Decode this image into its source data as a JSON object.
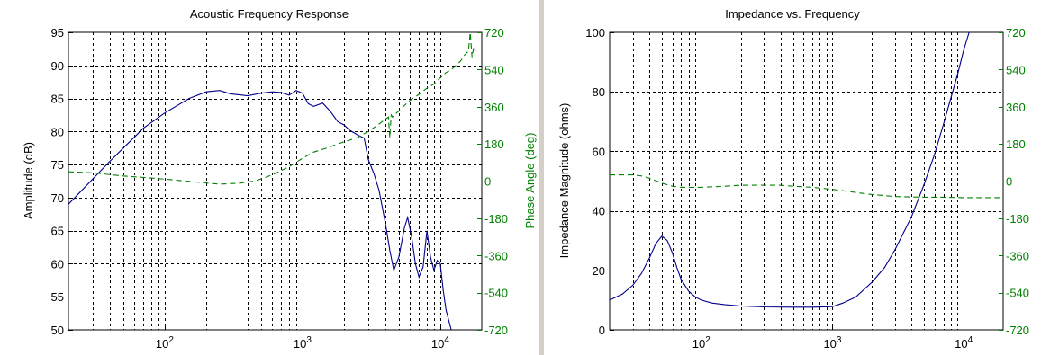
{
  "chart_data": [
    {
      "type": "line",
      "title": "Acoustic Frequency Response",
      "xscale": "log",
      "xlim": [
        20,
        20000
      ],
      "x_tick_labels": [
        {
          "value": 100,
          "base": "10",
          "exp": "2"
        },
        {
          "value": 1000,
          "base": "10",
          "exp": "3"
        },
        {
          "value": 10000,
          "base": "10",
          "exp": "4"
        }
      ],
      "ylabel": "Amplitude (dB)",
      "ylim": [
        50,
        95
      ],
      "y_ticks": [
        "50",
        "55",
        "60",
        "65",
        "70",
        "75",
        "80",
        "85",
        "90",
        "95"
      ],
      "y2label": "Phase Angle (deg)",
      "y2lim": [
        -720,
        720
      ],
      "y2_ticks": [
        "-720",
        "-540",
        "-360",
        "-180",
        "0",
        "180",
        "360",
        "540",
        "720"
      ],
      "grid": true,
      "series": [
        {
          "axis": "left",
          "color": "#00008b",
          "dash": "solid",
          "x": [
            20,
            40,
            70,
            100,
            150,
            200,
            250,
            300,
            400,
            500,
            600,
            700,
            800,
            900,
            1000,
            1100,
            1200,
            1400,
            1600,
            1800,
            2000,
            2200,
            2500,
            2800,
            3000,
            3300,
            3600,
            4000,
            4300,
            4600,
            5000,
            5500,
            5800,
            6200,
            6600,
            7000,
            7500,
            8000,
            8500,
            9000,
            9500,
            10000,
            10500,
            11000,
            11500,
            12000
          ],
          "y": [
            69,
            75.5,
            80.5,
            82.8,
            85.0,
            86.0,
            86.2,
            85.7,
            85.4,
            85.8,
            86.0,
            85.9,
            85.5,
            86.2,
            85.8,
            84.2,
            83.8,
            84.3,
            83.0,
            81.5,
            81.0,
            80.2,
            79.5,
            79.0,
            75.8,
            73.6,
            71.0,
            66.0,
            62.0,
            59.0,
            61.0,
            65.5,
            67.0,
            64.0,
            60.0,
            58.0,
            59.5,
            65.0,
            61.0,
            59.0,
            60.5,
            60.0,
            56.0,
            53.0,
            51.5,
            50.0
          ]
        },
        {
          "axis": "right",
          "color": "#008000",
          "dash": "dashed",
          "x": [
            20,
            30,
            50,
            80,
            120,
            170,
            250,
            350,
            450,
            550,
            650,
            800,
            1000,
            1200,
            1500,
            2000,
            2500,
            3000,
            3500,
            4000,
            4200,
            4300,
            4400,
            4500,
            5000,
            6000,
            7000,
            8000,
            9000,
            10000,
            11000,
            12000,
            13000,
            14000,
            15000,
            16000,
            16500,
            17000,
            17500,
            18000
          ],
          "y": [
            45,
            40,
            25,
            15,
            5,
            -5,
            -15,
            -10,
            0,
            20,
            40,
            70,
            110,
            140,
            160,
            190,
            210,
            240,
            270,
            300,
            310,
            210,
            320,
            310,
            340,
            390,
            420,
            450,
            470,
            500,
            525,
            540,
            560,
            580,
            610,
            630,
            720,
            600,
            650,
            630
          ]
        }
      ]
    },
    {
      "type": "line",
      "title": "Impedance vs. Frequency",
      "xscale": "log",
      "xlim": [
        20,
        20000
      ],
      "x_tick_labels": [
        {
          "value": 100,
          "base": "10",
          "exp": "2"
        },
        {
          "value": 1000,
          "base": "10",
          "exp": "3"
        },
        {
          "value": 10000,
          "base": "10",
          "exp": "4"
        }
      ],
      "ylabel": "Impedance Magnitude (ohms)",
      "ylim": [
        0,
        100
      ],
      "y_ticks": [
        "0",
        "20",
        "40",
        "60",
        "80",
        "100"
      ],
      "y2label": "",
      "y2lim": [
        -720,
        720
      ],
      "y2_ticks": [
        "-720",
        "-540",
        "-360",
        "-180",
        "0",
        "180",
        "360",
        "540",
        "720"
      ],
      "grid": true,
      "series": [
        {
          "axis": "left",
          "color": "#00008b",
          "dash": "solid",
          "x": [
            20,
            25,
            30,
            35,
            40,
            45,
            50,
            55,
            60,
            65,
            70,
            80,
            90,
            100,
            120,
            150,
            200,
            300,
            500,
            700,
            1000,
            1200,
            1500,
            2000,
            2500,
            3000,
            4000,
            5000,
            6000,
            7000,
            8000,
            9000,
            10000,
            11000
          ],
          "y": [
            10,
            12,
            15,
            19,
            24,
            29,
            31.5,
            30,
            26,
            21,
            17,
            13,
            11,
            10,
            9,
            8.5,
            8,
            7.7,
            7.6,
            7.6,
            7.8,
            9,
            11,
            16,
            21,
            27,
            38,
            49,
            59,
            69,
            78,
            86,
            94,
            100
          ]
        },
        {
          "axis": "right",
          "color": "#008000",
          "dash": "dashed",
          "x": [
            20,
            25,
            30,
            35,
            40,
            50,
            60,
            70,
            80,
            100,
            150,
            200,
            300,
            400,
            500,
            700,
            1000,
            1500,
            2000,
            3000,
            5000,
            7000,
            10000,
            15000,
            20000
          ],
          "y": [
            30,
            30,
            30,
            25,
            15,
            -10,
            -25,
            -30,
            -30,
            -30,
            -25,
            -20,
            -20,
            -20,
            -25,
            -30,
            -40,
            -55,
            -65,
            -75,
            -78,
            -78,
            -80,
            -80,
            -80
          ]
        }
      ]
    }
  ]
}
